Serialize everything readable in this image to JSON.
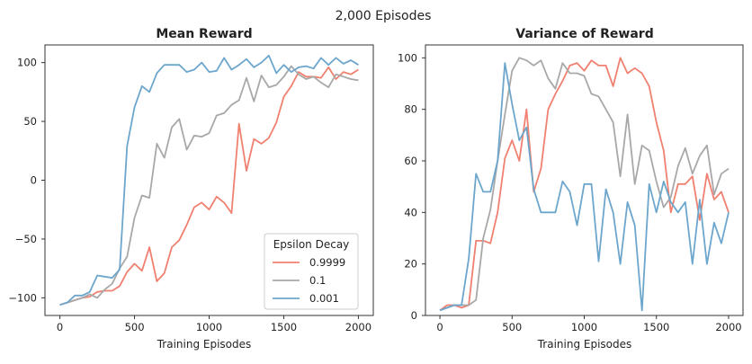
{
  "figure": {
    "suptitle": "2,000 Episodes"
  },
  "colors": {
    "0.9999": "#f08070",
    "0.1": "#a8a8a8",
    "0.001": "#6ca6cc"
  },
  "legend": {
    "title": "Epsilon Decay",
    "placement": "lower right",
    "entries": [
      "0.9999",
      "0.1",
      "0.001"
    ]
  },
  "chart_data": [
    {
      "type": "line",
      "title": "Mean Reward",
      "xlabel": "Training Episodes",
      "ylabel": "",
      "xlim": [
        -100,
        2100
      ],
      "ylim": [
        -115,
        115
      ],
      "xticks": [
        0,
        500,
        1000,
        1500,
        2000
      ],
      "yticks": [
        -100,
        -50,
        0,
        50,
        100
      ],
      "grid": false,
      "legend": "lower right",
      "x": [
        0,
        50,
        100,
        150,
        200,
        250,
        300,
        350,
        400,
        450,
        500,
        550,
        600,
        650,
        700,
        750,
        800,
        850,
        900,
        950,
        1000,
        1050,
        1100,
        1150,
        1200,
        1250,
        1300,
        1350,
        1400,
        1450,
        1500,
        1550,
        1600,
        1650,
        1700,
        1750,
        1800,
        1850,
        1900,
        1950,
        2000
      ],
      "series": [
        {
          "name": "0.9999",
          "values": [
            -106,
            -104,
            -102,
            -100,
            -99,
            -95,
            -94,
            -94,
            -90,
            -78,
            -71,
            -77,
            -57,
            -86,
            -79,
            -57,
            -51,
            -38,
            -23,
            -19,
            -25,
            -14,
            -19,
            -28,
            48,
            8,
            35,
            31,
            36,
            49,
            71,
            80,
            92,
            88,
            88,
            87,
            96,
            86,
            92,
            90,
            94
          ]
        },
        {
          "name": "0.1",
          "values": [
            -106,
            -104,
            -102,
            -100,
            -97,
            -100,
            -93,
            -88,
            -75,
            -65,
            -32,
            -13,
            -15,
            31,
            19,
            45,
            52,
            26,
            38,
            37,
            40,
            55,
            57,
            64,
            68,
            87,
            67,
            89,
            79,
            81,
            88,
            97,
            90,
            86,
            88,
            83,
            79,
            90,
            88,
            86,
            85
          ]
        },
        {
          "name": "0.001",
          "values": [
            -106,
            -104,
            -98,
            -98,
            -95,
            -81,
            -82,
            -83,
            -76,
            29,
            62,
            80,
            75,
            91,
            98,
            98,
            98,
            92,
            94,
            100,
            92,
            93,
            104,
            94,
            98,
            103,
            96,
            100,
            106,
            91,
            98,
            92,
            96,
            97,
            95,
            104,
            98,
            104,
            99,
            102,
            98
          ]
        }
      ]
    },
    {
      "type": "line",
      "title": "Variance of Reward",
      "xlabel": "Training Episodes",
      "ylabel": "",
      "xlim": [
        -100,
        2100
      ],
      "ylim": [
        0,
        105
      ],
      "xticks": [
        0,
        500,
        1000,
        1500,
        2000
      ],
      "yticks": [
        0,
        20,
        40,
        60,
        80,
        100
      ],
      "grid": false,
      "x": [
        0,
        50,
        100,
        150,
        200,
        250,
        300,
        350,
        400,
        450,
        500,
        550,
        600,
        650,
        700,
        750,
        800,
        850,
        900,
        950,
        1000,
        1050,
        1100,
        1150,
        1200,
        1250,
        1300,
        1350,
        1400,
        1450,
        1500,
        1550,
        1600,
        1650,
        1700,
        1750,
        1800,
        1850,
        1900,
        1950,
        2000
      ],
      "series": [
        {
          "name": "0.9999",
          "values": [
            2,
            4,
            4,
            3,
            4,
            29,
            29,
            28,
            40,
            61,
            68,
            60,
            80,
            48,
            57,
            80,
            86,
            91,
            97,
            98,
            95,
            99,
            97,
            97,
            89,
            100,
            94,
            96,
            94,
            89,
            75,
            64,
            40,
            51,
            51,
            54,
            37,
            55,
            45,
            48,
            40
          ]
        },
        {
          "name": "0.1",
          "values": [
            2,
            3,
            4,
            4,
            4,
            6,
            30,
            41,
            60,
            78,
            95,
            100,
            99,
            97,
            99,
            92,
            88,
            98,
            94,
            94,
            93,
            86,
            85,
            80,
            75,
            54,
            78,
            51,
            66,
            64,
            52,
            42,
            46,
            58,
            65,
            55,
            62,
            66,
            47,
            55,
            57
          ]
        },
        {
          "name": "0.001",
          "values": [
            2,
            3,
            4,
            4,
            22,
            55,
            48,
            48,
            60,
            98,
            82,
            68,
            73,
            49,
            40,
            40,
            40,
            52,
            48,
            35,
            51,
            51,
            21,
            49,
            40,
            20,
            44,
            35,
            2,
            51,
            40,
            52,
            44,
            40,
            44,
            20,
            45,
            20,
            36,
            28,
            40
          ]
        }
      ]
    }
  ]
}
